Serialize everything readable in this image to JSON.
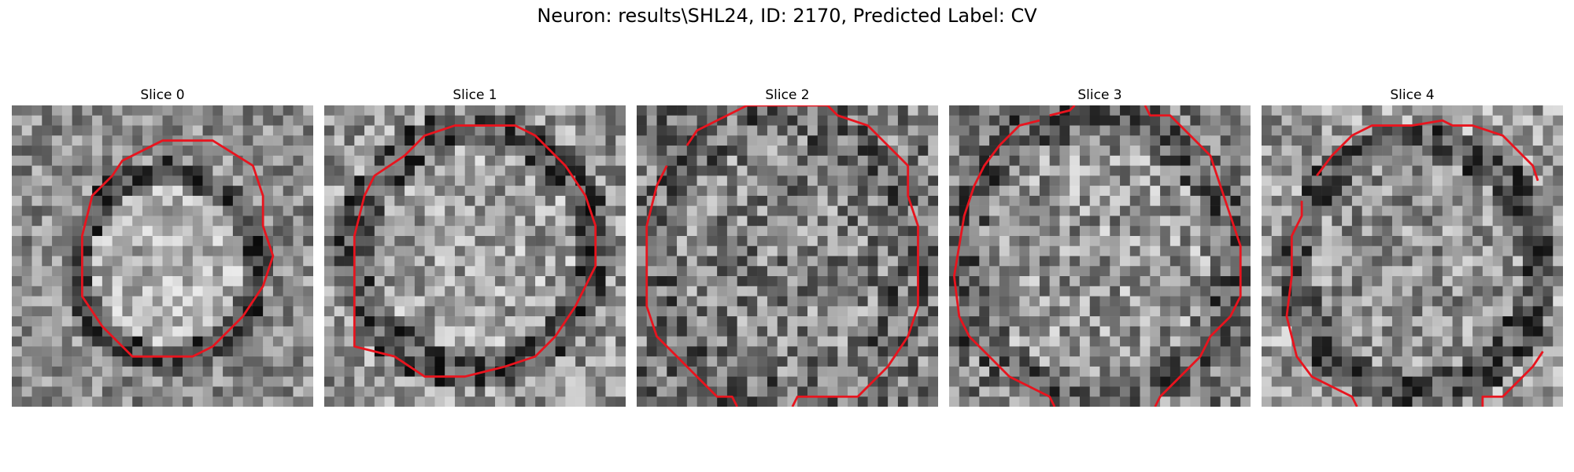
{
  "figure": {
    "title": "Neuron: results\\SHL24, ID: 2170, Predicted Label: CV"
  },
  "colors": {
    "contour": "#e8141e",
    "background": "#ffffff"
  },
  "panels": [
    {
      "title": "Slice 0"
    },
    {
      "title": "Slice 1"
    },
    {
      "title": "Slice 2"
    },
    {
      "title": "Slice 3"
    },
    {
      "title": "Slice 4"
    }
  ]
}
